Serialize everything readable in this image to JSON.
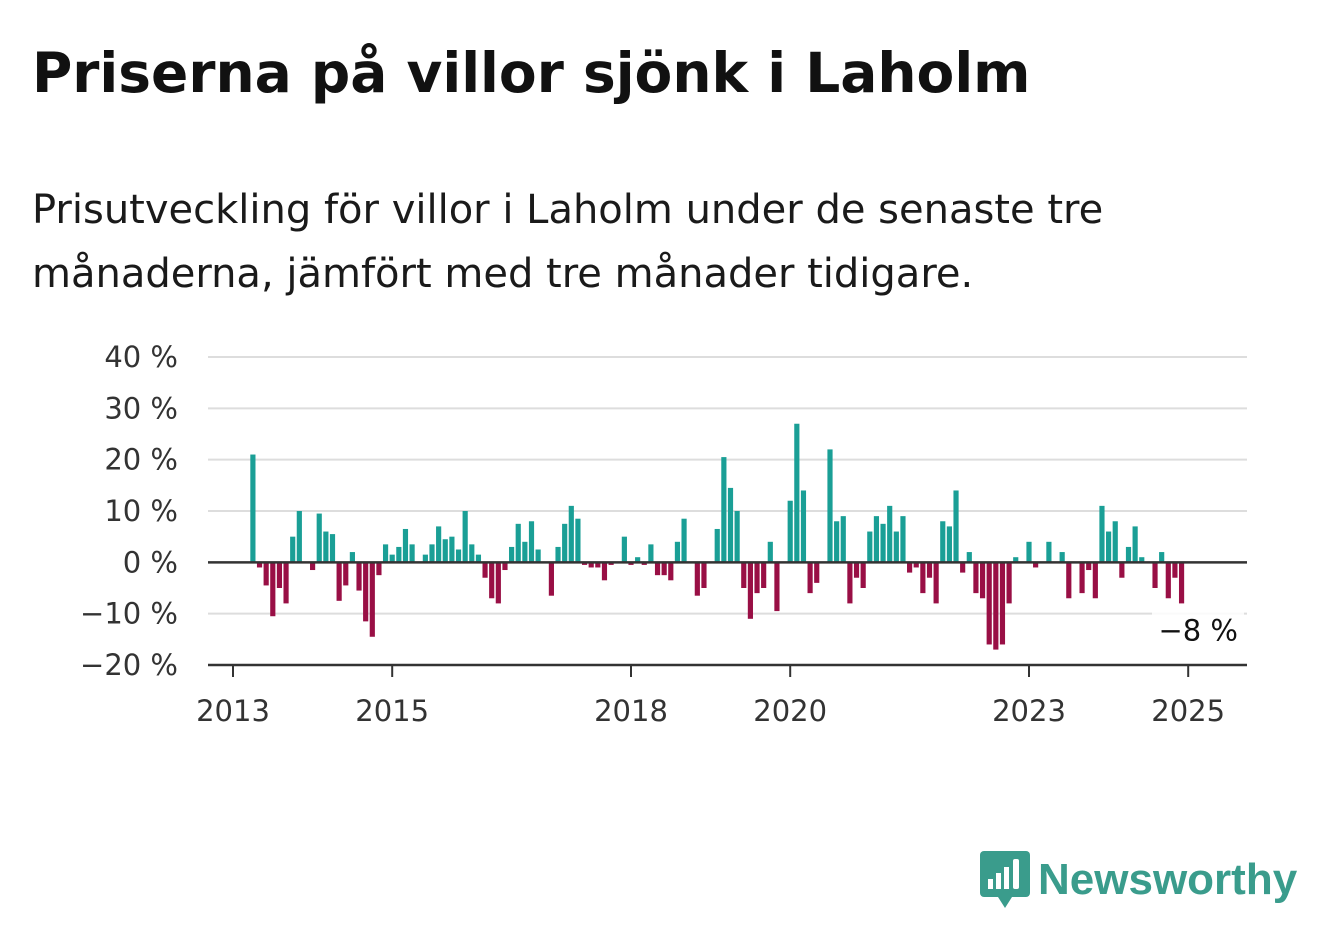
{
  "title": "Priserna på villor sjönk i Laholm",
  "subtitle": "Prisutveckling för villor i Laholm under de senaste tre månaderna, jämfört med tre månader tidigare.",
  "brand": {
    "name": "Newsworthy",
    "icon": "bar-chart-speech-bubble-icon",
    "color": "#3a9c8c"
  },
  "chart_data": {
    "type": "bar",
    "x_start": "2013-01",
    "x_end": "2025-07",
    "ylim": [
      -20,
      40
    ],
    "yticks": [
      40,
      30,
      20,
      10,
      0,
      -10,
      -20
    ],
    "ytick_labels": [
      "40 %",
      "30 %",
      "20 %",
      "10 %",
      "0 %",
      "−10 %",
      "−20 %"
    ],
    "xticks": [
      2013,
      2015,
      2018,
      2020,
      2023,
      2025
    ],
    "xtick_labels": [
      "2013",
      "2015",
      "2018",
      "2020",
      "2023",
      "2025"
    ],
    "grid": true,
    "colors": {
      "positive": "#1a9f96",
      "negative": "#990f45",
      "grid": "#dddddd",
      "axis": "#333333"
    },
    "last_value_label": "−8 %",
    "values": [
      21,
      -1,
      -4.5,
      -10.5,
      -5,
      -8,
      5,
      10,
      0,
      -1.5,
      9.5,
      6,
      5.5,
      -7.5,
      -4.5,
      2,
      -5.5,
      -11.5,
      -14.5,
      -2.5,
      3.5,
      1.5,
      3,
      6.5,
      3.5,
      0,
      1.5,
      3.5,
      7,
      4.5,
      5,
      2.5,
      10,
      3.5,
      1.5,
      -3,
      -7,
      -8,
      -1.5,
      3,
      7.5,
      4,
      8,
      2.5,
      0,
      -6.5,
      3,
      7.5,
      11,
      8.5,
      -0.5,
      -1,
      -1,
      -3.5,
      -0.5,
      0,
      5,
      -0.5,
      1,
      -0.5,
      3.5,
      -2.5,
      -2.5,
      -3.5,
      4,
      8.5,
      0,
      -6.5,
      -5,
      0,
      6.5,
      20.5,
      14.5,
      10,
      -5,
      -11,
      -6,
      -5,
      4,
      -9.5,
      0,
      12,
      27,
      14,
      -6,
      -4,
      0,
      22,
      8,
      9,
      -8,
      -3,
      -5,
      6,
      9,
      7.5,
      11,
      6,
      9,
      -2,
      -1,
      -6,
      -3,
      -8,
      8,
      7,
      14,
      -2,
      2,
      -6,
      -7,
      -16,
      -17,
      -16,
      -8,
      1,
      0,
      4,
      -1,
      0,
      4,
      0,
      2,
      -7,
      0,
      -6,
      -1.5,
      -7,
      11,
      6,
      8,
      -3,
      3,
      7,
      1,
      0,
      -5,
      2,
      -7,
      -3,
      -8
    ]
  }
}
